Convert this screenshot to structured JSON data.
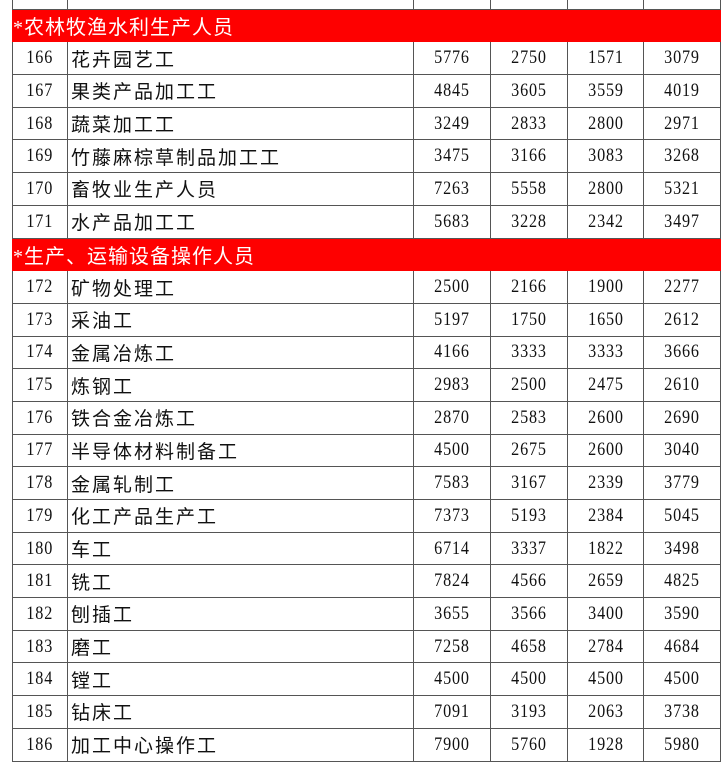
{
  "colors": {
    "section_bg": "#fe0000",
    "section_text": "#ffffff"
  },
  "sections": [
    {
      "title": "*农林牧渔水利生产人员",
      "rows": [
        {
          "no": "166",
          "name": "花卉园艺工",
          "values": [
            "5776",
            "2750",
            "1571",
            "3079"
          ]
        },
        {
          "no": "167",
          "name": "果类产品加工工",
          "values": [
            "4845",
            "3605",
            "3559",
            "4019"
          ]
        },
        {
          "no": "168",
          "name": "蔬菜加工工",
          "values": [
            "3249",
            "2833",
            "2800",
            "2971"
          ]
        },
        {
          "no": "169",
          "name": "竹藤麻棕草制品加工工",
          "values": [
            "3475",
            "3166",
            "3083",
            "3268"
          ]
        },
        {
          "no": "170",
          "name": "畜牧业生产人员",
          "values": [
            "7263",
            "5558",
            "2800",
            "5321"
          ]
        },
        {
          "no": "171",
          "name": "水产品加工工",
          "values": [
            "5683",
            "3228",
            "2342",
            "3497"
          ]
        }
      ]
    },
    {
      "title": "*生产、运输设备操作人员",
      "rows": [
        {
          "no": "172",
          "name": "矿物处理工",
          "values": [
            "2500",
            "2166",
            "1900",
            "2277"
          ]
        },
        {
          "no": "173",
          "name": "采油工",
          "values": [
            "5197",
            "1750",
            "1650",
            "2612"
          ]
        },
        {
          "no": "174",
          "name": "金属冶炼工",
          "values": [
            "4166",
            "3333",
            "3333",
            "3666"
          ]
        },
        {
          "no": "175",
          "name": "炼钢工",
          "values": [
            "2983",
            "2500",
            "2475",
            "2610"
          ]
        },
        {
          "no": "176",
          "name": "铁合金冶炼工",
          "values": [
            "2870",
            "2583",
            "2600",
            "2690"
          ]
        },
        {
          "no": "177",
          "name": "半导体材料制备工",
          "values": [
            "4500",
            "2675",
            "2600",
            "3040"
          ]
        },
        {
          "no": "178",
          "name": "金属轧制工",
          "values": [
            "7583",
            "3167",
            "2339",
            "3779"
          ]
        },
        {
          "no": "179",
          "name": "化工产品生产工",
          "values": [
            "7373",
            "5193",
            "2384",
            "5045"
          ]
        },
        {
          "no": "180",
          "name": "车工",
          "values": [
            "6714",
            "3337",
            "1822",
            "3498"
          ]
        },
        {
          "no": "181",
          "name": "铣工",
          "values": [
            "7824",
            "4566",
            "2659",
            "4825"
          ]
        },
        {
          "no": "182",
          "name": "刨插工",
          "values": [
            "3655",
            "3566",
            "3400",
            "3590"
          ]
        },
        {
          "no": "183",
          "name": "磨工",
          "values": [
            "7258",
            "4658",
            "2784",
            "4684"
          ]
        },
        {
          "no": "184",
          "name": "镗工",
          "values": [
            "4500",
            "4500",
            "4500",
            "4500"
          ]
        },
        {
          "no": "185",
          "name": "钻床工",
          "values": [
            "7091",
            "3193",
            "2063",
            "3738"
          ]
        },
        {
          "no": "186",
          "name": "加工中心操作工",
          "values": [
            "7900",
            "5760",
            "1928",
            "5980"
          ]
        }
      ]
    }
  ]
}
